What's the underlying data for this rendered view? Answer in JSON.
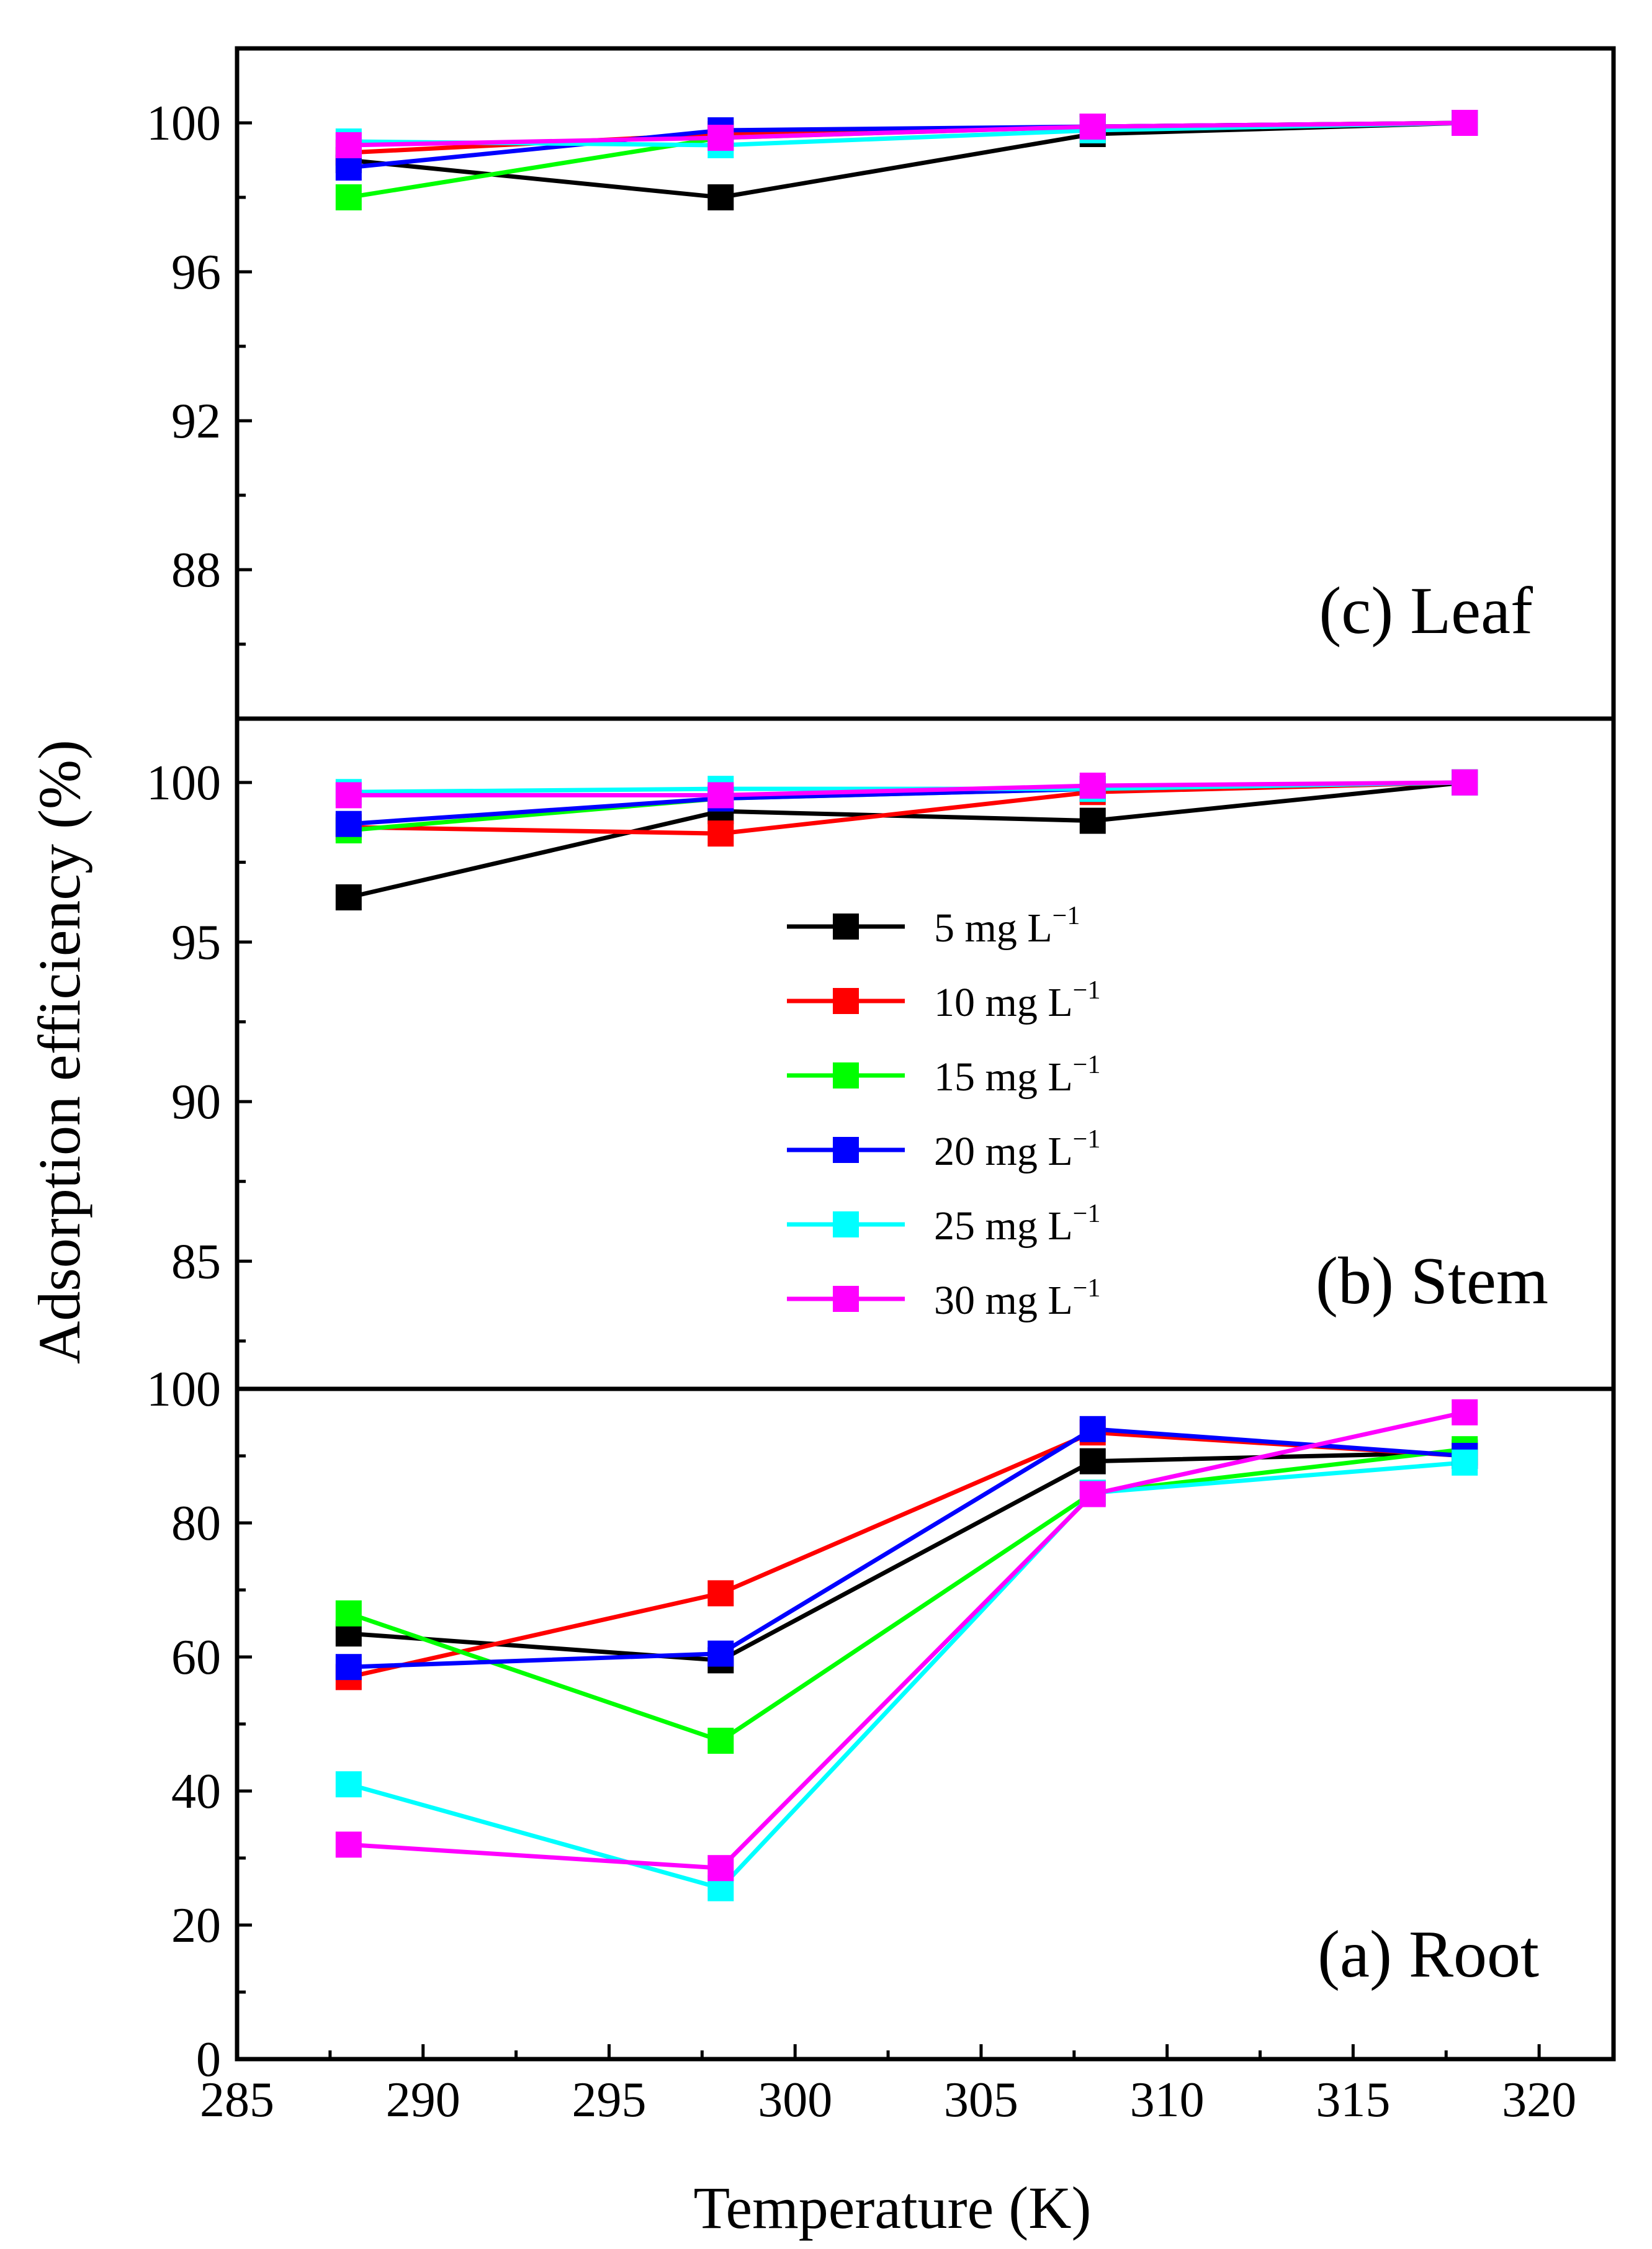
{
  "chart_data": {
    "type": "line",
    "xlabel": "Temperature (K)",
    "ylabel": "Adsorption efficiency (%)",
    "xlim": [
      285,
      322
    ],
    "x_ticks": [
      "285",
      "290",
      "295",
      "300",
      "305",
      "310",
      "315",
      "320"
    ],
    "x": [
      288,
      298,
      308,
      318
    ],
    "legend": {
      "placement": "center",
      "entries": [
        {
          "name": "5  mg L",
          "sup": "−1"
        },
        {
          "name": "10 mg L",
          "sup": "−1"
        },
        {
          "name": "15 mg L",
          "sup": "−1"
        },
        {
          "name": "20 mg L",
          "sup": "−1"
        },
        {
          "name": "25 mg L",
          "sup": "−1"
        },
        {
          "name": "30 mg L",
          "sup": "−1"
        }
      ]
    },
    "series_colors": [
      "#000000",
      "#ff0000",
      "#00ff00",
      "#0000ff",
      "#00ffff",
      "#ff00ff"
    ],
    "panels": [
      {
        "id": "leaf",
        "label": "(c) Leaf",
        "ylim": [
          84,
          102
        ],
        "y_ticks": [
          "88",
          "92",
          "96",
          "100"
        ],
        "series": [
          {
            "name": "5 mg L-1",
            "values": [
              99.0,
              98.0,
              99.7,
              100.0
            ]
          },
          {
            "name": "10 mg L-1",
            "values": [
              99.2,
              99.7,
              99.9,
              100.0
            ]
          },
          {
            "name": "15 mg L-1",
            "values": [
              98.0,
              99.6,
              99.9,
              100.0
            ]
          },
          {
            "name": "20 mg L-1",
            "values": [
              98.8,
              99.8,
              99.9,
              100.0
            ]
          },
          {
            "name": "25 mg L-1",
            "values": [
              99.5,
              99.4,
              99.8,
              100.0
            ]
          },
          {
            "name": "30 mg L-1",
            "values": [
              99.4,
              99.6,
              99.9,
              100.0
            ]
          }
        ]
      },
      {
        "id": "stem",
        "label": "(b) Stem",
        "ylim": [
          81,
          102
        ],
        "y_ticks": [
          "85",
          "90",
          "95",
          "100"
        ],
        "series": [
          {
            "name": "5 mg L-1",
            "values": [
              96.4,
              99.1,
              98.8,
              100.0
            ]
          },
          {
            "name": "10 mg L-1",
            "values": [
              98.6,
              98.4,
              99.7,
              100.0
            ]
          },
          {
            "name": "15 mg L-1",
            "values": [
              98.5,
              99.5,
              99.8,
              100.0
            ]
          },
          {
            "name": "20 mg L-1",
            "values": [
              98.7,
              99.5,
              99.8,
              100.0
            ]
          },
          {
            "name": "25 mg L-1",
            "values": [
              99.7,
              99.8,
              99.8,
              100.0
            ]
          },
          {
            "name": "30 mg L-1",
            "values": [
              99.6,
              99.6,
              99.9,
              100.0
            ]
          }
        ]
      },
      {
        "id": "root",
        "label": "(a) Root",
        "ylim": [
          0,
          100
        ],
        "y_ticks": [
          "0",
          "20",
          "40",
          "60",
          "80",
          "100"
        ],
        "series": [
          {
            "name": "5 mg L-1",
            "values": [
              63.5,
              59.5,
              89.2,
              90.5
            ]
          },
          {
            "name": "10 mg L-1",
            "values": [
              57.0,
              69.5,
              93.5,
              90.0
            ]
          },
          {
            "name": "15 mg L-1",
            "values": [
              66.5,
              47.5,
              84.5,
              91.0
            ]
          },
          {
            "name": "20 mg L-1",
            "values": [
              58.5,
              60.5,
              94.0,
              90.0
            ]
          },
          {
            "name": "25 mg L-1",
            "values": [
              41.0,
              25.5,
              84.5,
              89.0
            ]
          },
          {
            "name": "30 mg L-1",
            "values": [
              32.0,
              28.5,
              84.3,
              96.5
            ]
          }
        ]
      }
    ]
  }
}
